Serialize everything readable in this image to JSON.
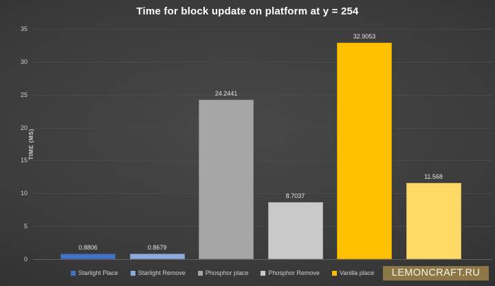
{
  "title": "Time for block update on platform at y = 254",
  "watermark": {
    "text": "LEMONCRAFT.RU",
    "bg_color": "#8e7747"
  },
  "chart_data": {
    "type": "bar",
    "title": "Time for block update on platform at y = 254",
    "xlabel": "",
    "ylabel": "TIME (MS)",
    "ylim": [
      0,
      35
    ],
    "yticks": [
      0,
      5,
      10,
      15,
      20,
      25,
      30,
      35
    ],
    "grid": true,
    "legend_position": "bottom",
    "categories": [
      "Starlight Place",
      "Starlight Remove",
      "Phosphor place",
      "Phosphor Remove",
      "Vanilla place",
      ""
    ],
    "values": [
      0.8806,
      0.8679,
      24.2441,
      8.7037,
      32.9053,
      11.568
    ],
    "value_labels": [
      "0.8806",
      "0.8679",
      "24.2441",
      "8.7037",
      "32.9053",
      "11.568"
    ],
    "bar_colors": [
      "#4472C4",
      "#8FAADC",
      "#A6A6A6",
      "#C9C9C9",
      "#FFC000",
      "#FFD966"
    ],
    "legend": [
      {
        "label": "Starlight Place",
        "color": "#4472C4"
      },
      {
        "label": "Starlight Remove",
        "color": "#8FAADC"
      },
      {
        "label": "Phosphor place",
        "color": "#A6A6A6"
      },
      {
        "label": "Phosphor Remove",
        "color": "#C9C9C9"
      },
      {
        "label": "Vanilla place",
        "color": "#FFC000"
      },
      {
        "label": "",
        "color": "#FFD966"
      }
    ],
    "colors": {
      "background_center": "#484848",
      "background_edge": "#242424",
      "gridline": "#4a4a4a",
      "axis_line": "#616161",
      "tick_text": "#cfcfcf",
      "data_label_text": "#e6e6e6",
      "title_text": "#ffffff"
    }
  }
}
